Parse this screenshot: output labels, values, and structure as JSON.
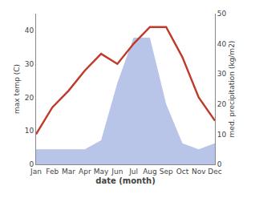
{
  "chart_data": {
    "type": "line",
    "xlabel": "date (month)",
    "ylabel": "max temp (C)",
    "y2label": "med. precipitation (kg/m2)",
    "categories": [
      "Jan",
      "Feb",
      "Mar",
      "Apr",
      "May",
      "Jun",
      "Jul",
      "Aug",
      "Sep",
      "Oct",
      "Nov",
      "Dec"
    ],
    "series": [
      {
        "type": "area",
        "axis": "y2",
        "color": "#b8c4e8",
        "values": [
          5,
          5,
          5,
          5,
          8,
          27,
          42,
          42,
          20,
          7,
          5,
          7
        ]
      },
      {
        "type": "line",
        "color": "#c0392b",
        "values": [
          9,
          17,
          22,
          28,
          33,
          30,
          36,
          41,
          41,
          32,
          20,
          13
        ]
      }
    ],
    "ylim": [
      0,
      45
    ],
    "yticks": [
      0,
      10,
      20,
      30,
      40
    ],
    "y2lim": [
      0,
      50
    ],
    "y2ticks": [
      0,
      10,
      20,
      30,
      40,
      50
    ],
    "grid": false
  }
}
